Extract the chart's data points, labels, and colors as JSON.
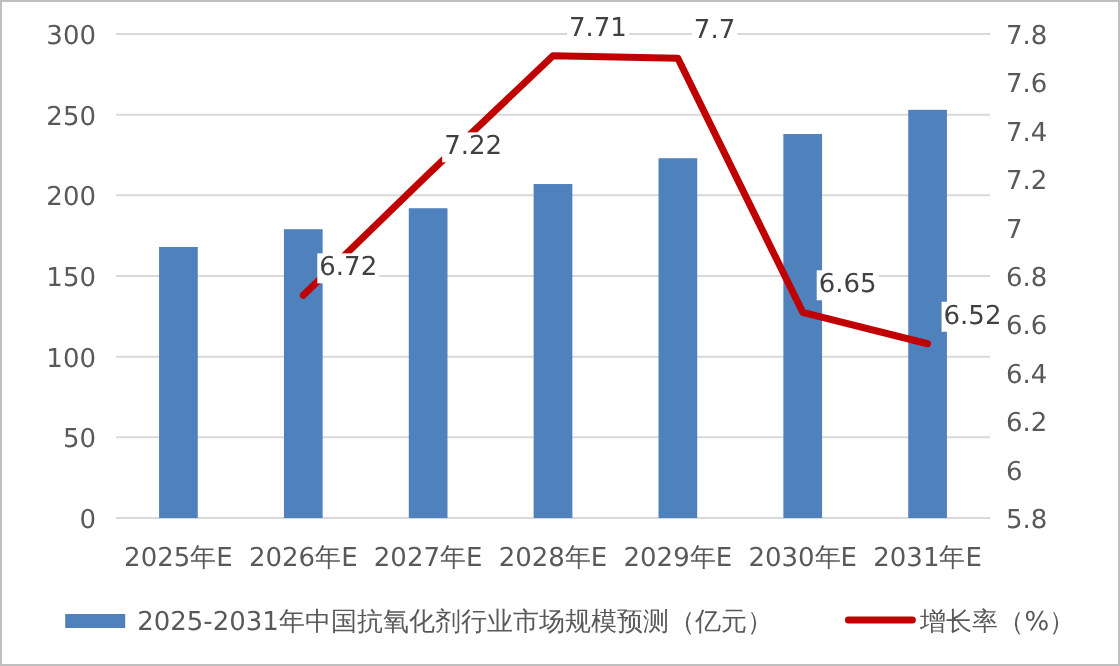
{
  "chart_data": {
    "type": "bar",
    "categories": [
      "2025年E",
      "2026年E",
      "2027年E",
      "2028年E",
      "2029年E",
      "2030年E",
      "2031年E"
    ],
    "series": [
      {
        "name": "2025-2031年中国抗氧化剂行业市场规模预测（亿元）",
        "color": "#4f81bd",
        "values": [
          168,
          179,
          192,
          207,
          223,
          238,
          253
        ]
      },
      {
        "name": "增长率（%）",
        "type": "line",
        "axis": "y2",
        "color": "#c00000",
        "values": [
          null,
          6.72,
          7.22,
          7.71,
          7.7,
          6.65,
          6.52
        ],
        "value_labels": [
          null,
          "6.72",
          "7.22",
          "7.71",
          "7.7",
          "6.65",
          "6.52"
        ]
      }
    ],
    "ylim": [
      0,
      300
    ],
    "yticks": [
      0,
      50,
      100,
      150,
      200,
      250,
      300
    ],
    "y2lim": [
      5.8,
      7.8
    ],
    "y2ticks": [
      5.8,
      6,
      6.2,
      6.4,
      6.6,
      6.8,
      7,
      7.2,
      7.4,
      7.6,
      7.8
    ],
    "grid": "y",
    "legend": "bottom"
  }
}
